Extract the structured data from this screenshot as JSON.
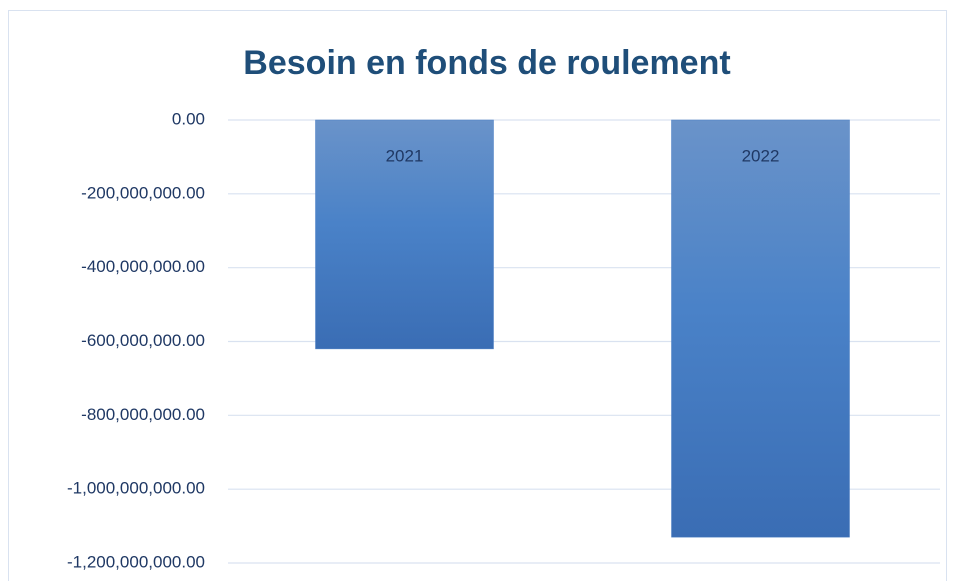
{
  "chart_data": {
    "type": "bar",
    "title": "Besoin en fonds de roulement",
    "categories": [
      "2021",
      "2022"
    ],
    "values": [
      -620000000,
      -1130000000
    ],
    "color": "#4a7fc4",
    "ylim": [
      -1200000000,
      0
    ],
    "yticks": [
      {
        "value": 0,
        "label": "0.00"
      },
      {
        "value": -200000000,
        "label": "-200,000,000.00"
      },
      {
        "value": -400000000,
        "label": "-400,000,000.00"
      },
      {
        "value": -600000000,
        "label": "-600,000,000.00"
      },
      {
        "value": -800000000,
        "label": "-800,000,000.00"
      },
      {
        "value": -1000000000,
        "label": "-1,000,000,000.00"
      },
      {
        "value": -1200000000,
        "label": "-1,200,000,000.00"
      }
    ],
    "grid": true
  }
}
